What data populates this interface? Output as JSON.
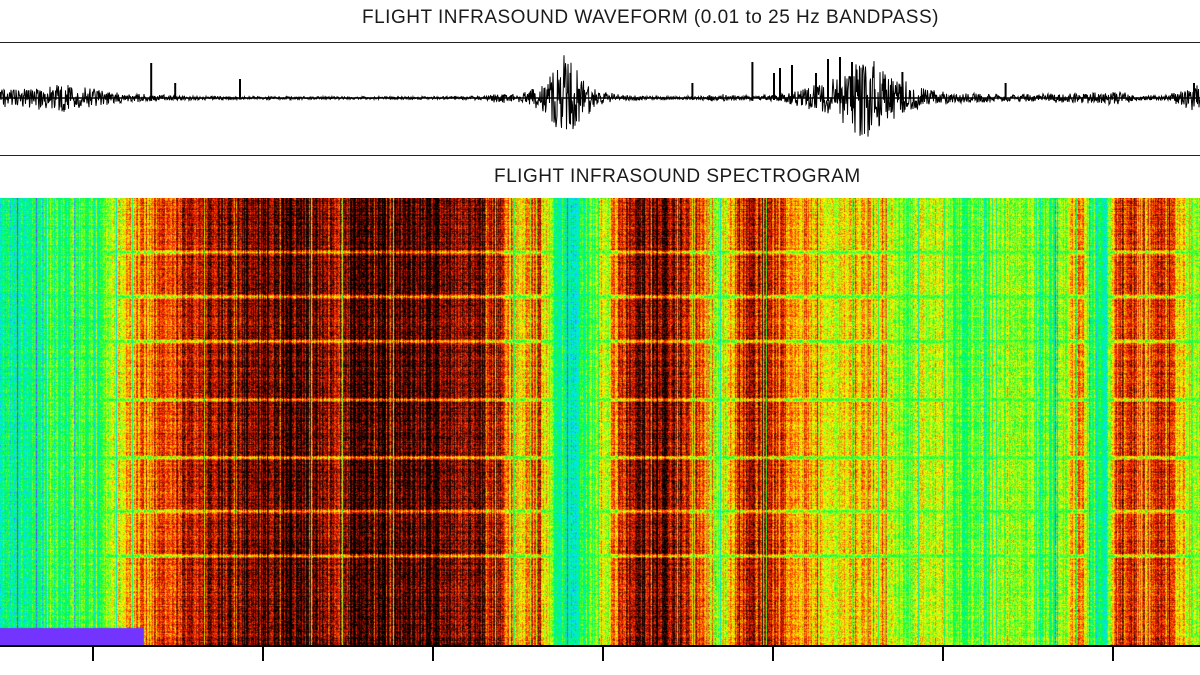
{
  "panels": {
    "waveform_title": "FLIGHT INFRASOUND WAVEFORM (0.01 to 25 Hz BANDPASS)",
    "spectrogram_title": "FLIGHT INFRASOUND SPECTROGRAM"
  },
  "chart_data": [
    {
      "type": "line",
      "title": "FLIGHT INFRASOUND WAVEFORM (0.01 to 25 Hz BANDPASS)",
      "xlabel": "",
      "ylabel": "",
      "xlim": [
        0,
        1
      ],
      "ylim": [
        -1,
        1
      ],
      "grid": false,
      "series": [
        {
          "envelope_x": [
            0.0,
            0.05,
            0.1,
            0.15,
            0.2,
            0.25,
            0.3,
            0.35,
            0.4,
            0.42,
            0.43,
            0.45,
            0.46,
            0.47,
            0.48,
            0.49,
            0.5,
            0.52,
            0.55,
            0.58,
            0.6,
            0.62,
            0.65,
            0.68,
            0.7,
            0.72,
            0.75,
            0.78,
            0.8,
            0.85,
            0.9,
            0.93,
            0.95,
            0.97,
            1.0
          ],
          "envelope_amplitude": [
            0.18,
            0.3,
            0.1,
            0.05,
            0.03,
            0.03,
            0.03,
            0.03,
            0.04,
            0.12,
            0.06,
            0.25,
            0.55,
            0.95,
            0.6,
            0.35,
            0.15,
            0.06,
            0.03,
            0.04,
            0.08,
            0.05,
            0.07,
            0.3,
            0.45,
            0.9,
            0.4,
            0.15,
            0.1,
            0.08,
            0.1,
            0.15,
            0.06,
            0.05,
            0.3
          ]
        }
      ],
      "spikes": [
        {
          "x": 0.126,
          "amplitude": 0.7
        },
        {
          "x": 0.146,
          "amplitude": 0.3
        },
        {
          "x": 0.2,
          "amplitude": 0.38
        },
        {
          "x": 0.577,
          "amplitude": 0.3
        },
        {
          "x": 0.627,
          "amplitude": 0.72
        },
        {
          "x": 0.645,
          "amplitude": 0.5
        },
        {
          "x": 0.65,
          "amplitude": 0.6
        },
        {
          "x": 0.66,
          "amplitude": 0.66
        },
        {
          "x": 0.68,
          "amplitude": 0.5
        },
        {
          "x": 0.69,
          "amplitude": 0.78
        },
        {
          "x": 0.7,
          "amplitude": 0.82
        },
        {
          "x": 0.71,
          "amplitude": 0.72
        },
        {
          "x": 0.752,
          "amplitude": 0.52
        },
        {
          "x": 0.838,
          "amplitude": 0.3
        },
        {
          "x": 0.995,
          "amplitude": 0.3
        }
      ]
    },
    {
      "type": "heatmap",
      "title": "FLIGHT INFRASOUND SPECTROGRAM",
      "xlabel": "",
      "ylabel": "",
      "xlim": [
        0,
        1
      ],
      "ylim": [
        0,
        1
      ],
      "colormap": [
        "#8020ff",
        "#00e6ff",
        "#00ff40",
        "#ffff00",
        "#ff2000",
        "#000000"
      ],
      "column_intensity_x": [
        0.0,
        0.05,
        0.08,
        0.1,
        0.12,
        0.15,
        0.2,
        0.25,
        0.28,
        0.3,
        0.33,
        0.36,
        0.38,
        0.4,
        0.42,
        0.43,
        0.45,
        0.46,
        0.47,
        0.48,
        0.49,
        0.5,
        0.52,
        0.55,
        0.58,
        0.6,
        0.62,
        0.65,
        0.68,
        0.7,
        0.72,
        0.75,
        0.78,
        0.8,
        0.85,
        0.88,
        0.9,
        0.91,
        0.92,
        0.93,
        0.94,
        0.95,
        0.97,
        1.0
      ],
      "column_intensity": [
        0.3,
        0.38,
        0.45,
        0.6,
        0.72,
        0.82,
        0.92,
        0.95,
        0.85,
        0.97,
        0.96,
        0.93,
        0.92,
        0.92,
        0.8,
        0.6,
        0.78,
        0.4,
        0.3,
        0.25,
        0.45,
        0.55,
        0.85,
        0.92,
        0.8,
        0.5,
        0.85,
        0.78,
        0.65,
        0.55,
        0.7,
        0.5,
        0.6,
        0.45,
        0.55,
        0.4,
        0.75,
        0.35,
        0.25,
        0.8,
        0.85,
        0.75,
        0.8,
        0.45
      ],
      "horizontal_bands_y": [
        0.12,
        0.22,
        0.32,
        0.45,
        0.58,
        0.7,
        0.8
      ]
    }
  ],
  "axis": {
    "tick_count": 7
  }
}
